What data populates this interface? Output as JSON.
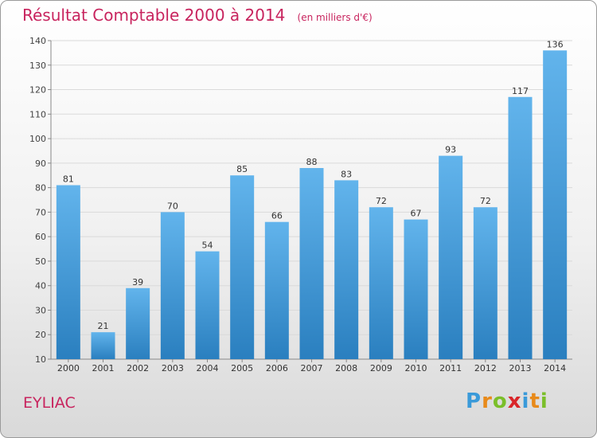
{
  "header": {
    "title": "Résultat Comptable 2000 à 2014",
    "subtitle": "(en milliers d'€)"
  },
  "footer": {
    "commune": "EYLIAC",
    "logo_letters": [
      "P",
      "r",
      "o",
      "x",
      "i",
      "t",
      "i"
    ],
    "logo_colors": [
      "#3a9ad9",
      "#e88a1a",
      "#7bbf2a",
      "#d9262a",
      "#3a9ad9",
      "#e88a1a",
      "#7bbf2a"
    ]
  },
  "colors": {
    "bar_light": "#62b4ec",
    "bar_dark": "#2a7fbf",
    "title": "#c8245e"
  },
  "chart_data": {
    "type": "bar",
    "title": "Résultat Comptable 2000 à 2014",
    "subtitle": "(en milliers d'€)",
    "categories": [
      "2000",
      "2001",
      "2002",
      "2003",
      "2004",
      "2005",
      "2006",
      "2007",
      "2008",
      "2009",
      "2010",
      "2011",
      "2012",
      "2013",
      "2014"
    ],
    "values": [
      81,
      21,
      39,
      70,
      54,
      85,
      66,
      88,
      83,
      72,
      67,
      93,
      72,
      117,
      136
    ],
    "ylim": [
      10,
      140
    ],
    "yticks": [
      10,
      20,
      30,
      40,
      50,
      60,
      70,
      80,
      90,
      100,
      110,
      120,
      130,
      140
    ],
    "grid": true
  }
}
